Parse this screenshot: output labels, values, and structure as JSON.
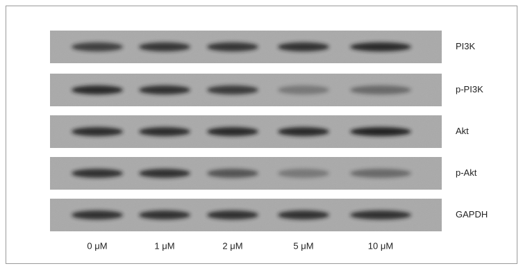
{
  "proteins": [
    "PI3K",
    "p-PI3K",
    "Akt",
    "p-Akt",
    "GAPDH"
  ],
  "lanes": [
    "0 μM",
    "1 μM",
    "2 μM",
    "5 μM",
    "10 μM"
  ]
}
